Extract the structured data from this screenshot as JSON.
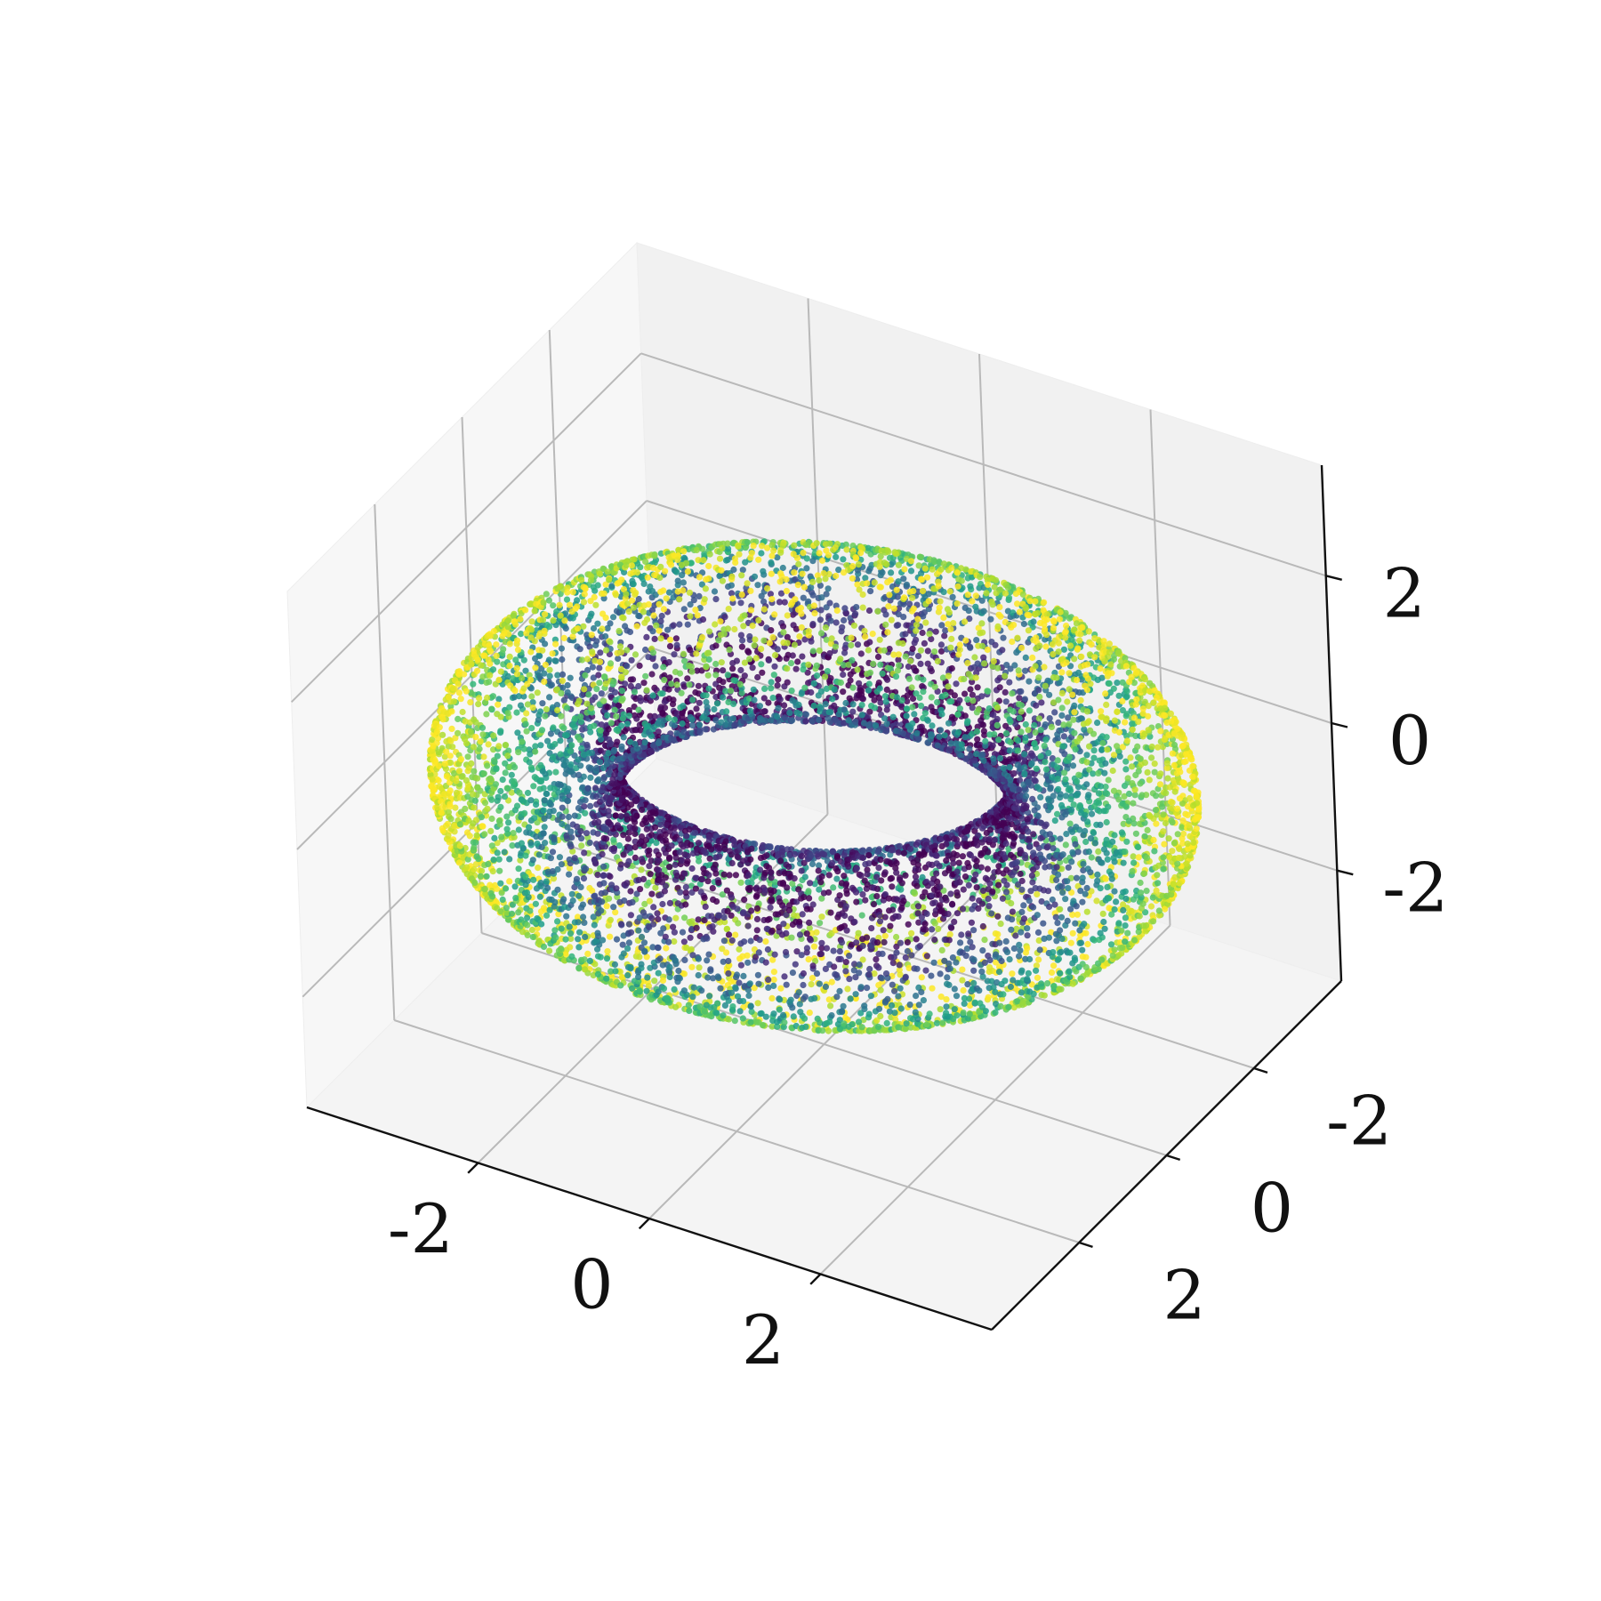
{
  "chart_data": {
    "type": "scatter",
    "projection": "3d",
    "title": "",
    "surface": "torus",
    "torus": {
      "major_radius": 3,
      "minor_radius": 1
    },
    "color_scale": "viridis",
    "axes": {
      "x": {
        "label": "",
        "range": [
          -4,
          4
        ],
        "ticks": [
          -2,
          0,
          2
        ],
        "tick_labels": [
          "-2",
          "0",
          "2"
        ]
      },
      "y": {
        "label": "",
        "range": [
          -4,
          4
        ],
        "ticks": [
          -2,
          0,
          2
        ],
        "tick_labels": [
          "-2",
          "0",
          "2"
        ]
      },
      "z": {
        "label": "",
        "range": [
          -3.5,
          3.5
        ],
        "ticks": [
          -2,
          0,
          2
        ],
        "tick_labels": [
          "-2",
          "0",
          "2"
        ]
      }
    },
    "grid": true,
    "legend": "none",
    "colors": {
      "pane_left": "#f7f7f7",
      "pane_back": "#f1f1f1",
      "pane_floor": "#f4f4f4",
      "grid": "#b9b9b9"
    }
  }
}
